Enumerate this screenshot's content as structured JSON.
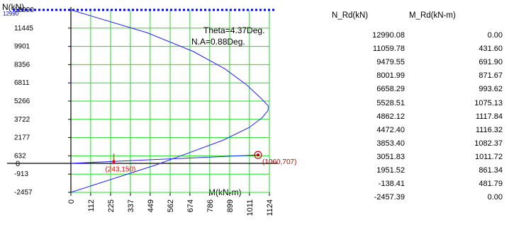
{
  "chart_data": {
    "type": "line",
    "x_axis_label": "M(kN-m)",
    "y_axis_label": "N(kN)",
    "x_ticks": [
      "0",
      "112",
      "225",
      "337",
      "449",
      "562",
      "674",
      "786",
      "899",
      "1011",
      "1124"
    ],
    "y_ticks": [
      "12990",
      "11445",
      "9901",
      "8356",
      "6811",
      "5266",
      "3722",
      "2177",
      "632",
      "-913",
      "-2457"
    ],
    "xlim": [
      0,
      1124
    ],
    "ylim": [
      -2457,
      12990
    ],
    "zero_label": "0",
    "top_marker_label": "12990",
    "theta_label": "Theta=4.37Deg.",
    "na_label": "N.A=0.88Deg.",
    "series": [
      {
        "color": "#2020ff",
        "x": [
          0.0,
          431.6,
          691.9,
          871.67,
          993.62,
          1075.13,
          1117.84,
          1116.32,
          1082.37,
          1011.72,
          861.34,
          481.79,
          0.0
        ],
        "y": [
          12990.08,
          11059.78,
          9479.55,
          8001.99,
          6658.29,
          5528.51,
          4862.12,
          4472.4,
          3853.4,
          3051.83,
          1951.52,
          -138.41,
          -2457.39
        ]
      }
    ],
    "points": [
      {
        "label": "(1060,707)",
        "x": 1060,
        "y": 707,
        "color": "#c00000"
      },
      {
        "label": "(243,150)",
        "x": 243,
        "y": 150,
        "color": "#ff0000"
      }
    ],
    "cap_line_y": 12990,
    "table": {
      "columns": [
        "N_Rd(kN)",
        "M_Rd(kN-m)"
      ],
      "rows": [
        [
          "12990.08",
          "0.00"
        ],
        [
          "11059.78",
          "431.60"
        ],
        [
          "9479.55",
          "691.90"
        ],
        [
          "8001.99",
          "871.67"
        ],
        [
          "6658.29",
          "993.62"
        ],
        [
          "5528.51",
          "1075.13"
        ],
        [
          "4862.12",
          "1117.84"
        ],
        [
          "4472.40",
          "1116.32"
        ],
        [
          "3853.40",
          "1082.37"
        ],
        [
          "3051.83",
          "1011.72"
        ],
        [
          "1951.52",
          "861.34"
        ],
        [
          "-138.41",
          "481.79"
        ],
        [
          "-2457.39",
          "0.00"
        ]
      ]
    }
  }
}
